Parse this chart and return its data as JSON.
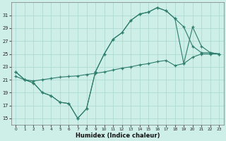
{
  "line1_x": [
    0,
    1,
    2,
    3,
    4,
    5,
    6,
    7,
    8,
    9,
    10,
    11,
    12,
    13,
    14,
    15,
    16,
    17,
    18,
    19,
    20,
    21,
    22,
    23
  ],
  "line1_y": [
    22.2,
    21.0,
    20.5,
    19.0,
    18.5,
    17.5,
    17.3,
    15.0,
    16.5,
    22.2,
    25.0,
    27.3,
    28.3,
    30.2,
    31.2,
    31.5,
    32.2,
    31.7,
    30.5,
    29.2,
    26.2,
    25.2,
    25.2,
    25.0
  ],
  "line2_x": [
    0,
    1,
    2,
    3,
    4,
    5,
    6,
    7,
    8,
    9,
    10,
    11,
    12,
    13,
    14,
    15,
    16,
    17,
    18,
    19,
    20,
    21,
    22,
    23
  ],
  "line2_y": [
    22.2,
    21.0,
    20.5,
    19.0,
    18.5,
    17.5,
    17.3,
    15.0,
    16.5,
    22.2,
    25.0,
    27.3,
    28.3,
    30.2,
    31.2,
    31.5,
    32.2,
    31.7,
    30.5,
    23.5,
    29.2,
    26.2,
    25.2,
    25.0
  ],
  "line3_x": [
    0,
    1,
    2,
    3,
    4,
    5,
    6,
    7,
    8,
    9,
    10,
    11,
    12,
    13,
    14,
    15,
    16,
    17,
    18,
    19,
    20,
    21,
    22,
    23
  ],
  "line3_y": [
    21.5,
    21.0,
    20.8,
    21.0,
    21.2,
    21.4,
    21.5,
    21.6,
    21.8,
    22.0,
    22.2,
    22.5,
    22.8,
    23.0,
    23.3,
    23.5,
    23.8,
    24.0,
    23.2,
    23.5,
    24.5,
    25.0,
    25.0,
    25.0
  ],
  "color": "#2d7d6d",
  "bg_color": "#ceeee8",
  "grid_color": "#a8d8d0",
  "xlabel": "Humidex (Indice chaleur)",
  "yticks": [
    15,
    17,
    19,
    21,
    23,
    25,
    27,
    29,
    31
  ],
  "xticks": [
    0,
    1,
    2,
    3,
    4,
    5,
    6,
    7,
    8,
    9,
    10,
    11,
    12,
    13,
    14,
    15,
    16,
    17,
    18,
    19,
    20,
    21,
    22,
    23
  ],
  "xlim": [
    -0.5,
    23.5
  ],
  "ylim": [
    14.0,
    33.0
  ]
}
